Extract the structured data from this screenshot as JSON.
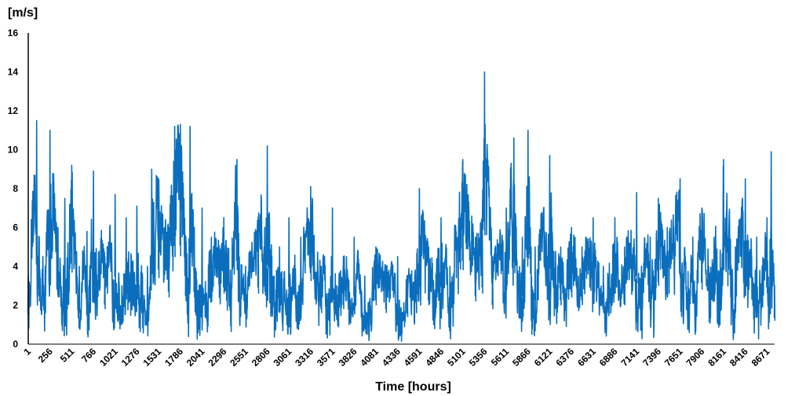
{
  "chart_data": {
    "type": "line",
    "title": "",
    "xlabel": "Time [hours]",
    "ylabel": "[m/s]",
    "xlim": [
      1,
      8760
    ],
    "ylim": [
      0,
      16
    ],
    "yticks": [
      "0",
      "2",
      "4",
      "6",
      "8",
      "10",
      "12",
      "14",
      "16"
    ],
    "xticks": [
      "1",
      "256",
      "511",
      "766",
      "1021",
      "1276",
      "1531",
      "1786",
      "2041",
      "2296",
      "2551",
      "2806",
      "3061",
      "3316",
      "3571",
      "3826",
      "4081",
      "4336",
      "4591",
      "4846",
      "5101",
      "5356",
      "5611",
      "5866",
      "6121",
      "6376",
      "6631",
      "6886",
      "7141",
      "7396",
      "7651",
      "7906",
      "8161",
      "8416",
      "8671"
    ],
    "grid": false,
    "legend": "none",
    "color": "#0a6ebd",
    "series": [
      {
        "x": [
          1,
          100,
          130,
          200,
          256,
          350,
          430,
          511,
          600,
          690,
          766,
          900,
          1021,
          1100,
          1150,
          1276,
          1400,
          1450,
          1531,
          1650,
          1720,
          1786,
          1850,
          1900,
          1950,
          2041,
          2150,
          2296,
          2450,
          2551,
          2700,
          2806,
          2950,
          3061,
          3200,
          3316,
          3440,
          3571,
          3700,
          3826,
          3950,
          4081,
          4200,
          4336,
          4450,
          4591,
          4700,
          4846,
          4950,
          5101,
          5250,
          5330,
          5356,
          5450,
          5611,
          5700,
          5800,
          5866,
          5950,
          6121,
          6250,
          6376,
          6500,
          6631,
          6750,
          6886,
          7000,
          7141,
          7300,
          7396,
          7500,
          7651,
          7800,
          7906,
          8050,
          8161,
          8300,
          8416,
          8550,
          8671,
          8720,
          8760
        ],
        "y": [
          3.5,
          11.5,
          5.5,
          4.0,
          11.0,
          6.0,
          7.5,
          9.2,
          4.0,
          5.8,
          8.9,
          4.5,
          7.7,
          3.0,
          6.5,
          7.1,
          4.0,
          9.0,
          8.5,
          6.0,
          11.2,
          11.3,
          5.5,
          11.2,
          6.0,
          7.0,
          5.5,
          6.5,
          9.5,
          4.0,
          6.5,
          10.2,
          5.0,
          6.5,
          5.5,
          8.1,
          4.0,
          7.0,
          4.5,
          5.5,
          3.5,
          5.0,
          4.0,
          4.5,
          3.5,
          8.0,
          5.0,
          6.5,
          4.0,
          9.5,
          5.5,
          6.5,
          14.0,
          4.5,
          7.0,
          10.6,
          5.5,
          11.0,
          5.0,
          9.7,
          5.0,
          6.0,
          5.0,
          6.5,
          4.0,
          6.5,
          5.0,
          7.8,
          5.5,
          7.5,
          6.0,
          8.5,
          5.5,
          7.0,
          5.5,
          9.5,
          5.0,
          8.5,
          5.5,
          6.5,
          9.9,
          3.0
        ]
      }
    ]
  }
}
